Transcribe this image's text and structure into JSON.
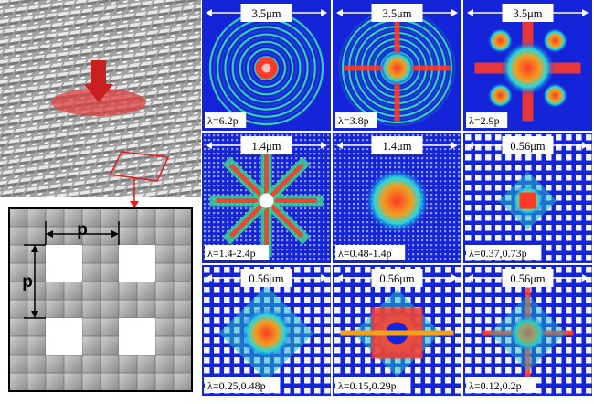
{
  "figure": {
    "schematic": {
      "period_label": "p"
    },
    "panels": [
      {
        "scale": "3.5μm",
        "lambda": "λ=6.2p",
        "pattern": "rings"
      },
      {
        "scale": "3.5μm",
        "lambda": "λ=3.8p",
        "pattern": "rings-cross"
      },
      {
        "scale": "3.5μm",
        "lambda": "λ=2.9p",
        "pattern": "cross"
      },
      {
        "scale": "1.4μm",
        "lambda": "λ=1.4-2.4p",
        "pattern": "star"
      },
      {
        "scale": "1.4μm",
        "lambda": "λ=0.48-1.4p",
        "pattern": "speckle"
      },
      {
        "scale": "0.56μm",
        "lambda": "λ=0.37,0.73p",
        "pattern": "lattice-small"
      },
      {
        "scale": "0.56μm",
        "lambda": "λ=0.25,0.48p",
        "pattern": "lattice-diamond"
      },
      {
        "scale": "0.56μm",
        "lambda": "λ=0.15,0.29p",
        "pattern": "lattice-ring"
      },
      {
        "scale": "0.56μm",
        "lambda": "λ=0.12,0.2p",
        "pattern": "lattice-cross"
      }
    ],
    "colors": {
      "background": "#1424d8",
      "hot": "#ff3a2a",
      "mid": "#22d8e0",
      "scale_bar": "#ffffff"
    }
  }
}
